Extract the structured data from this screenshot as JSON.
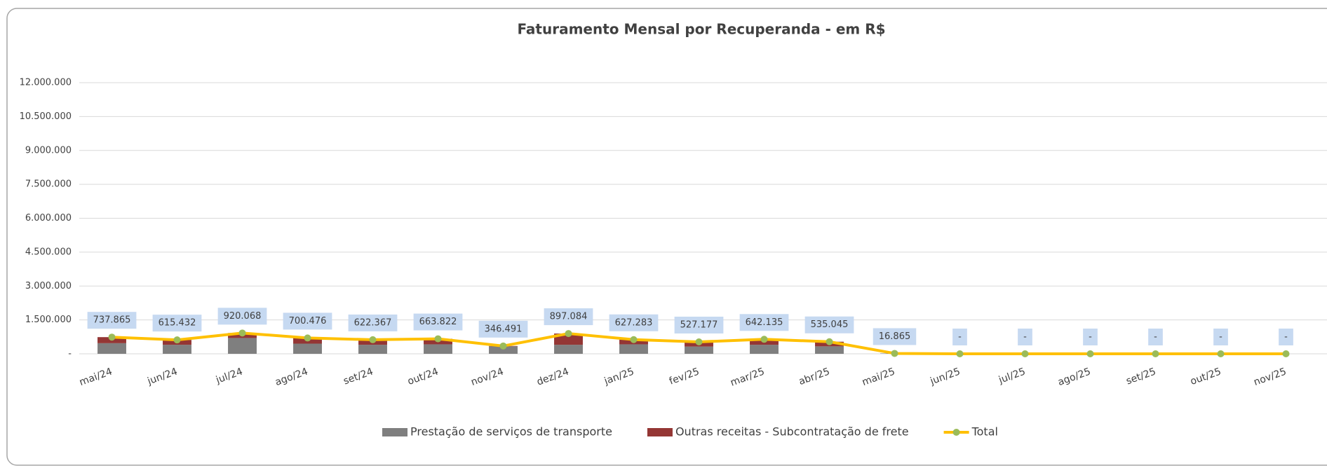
{
  "chart_data": {
    "type": "bar+line",
    "title": "Faturamento Mensal por Recuperanda - em R$",
    "categories": [
      "mai/24",
      "jun/24",
      "jul/24",
      "ago/24",
      "set/24",
      "out/24",
      "nov/24",
      "dez/24",
      "jan/25",
      "fev/25",
      "mar/25",
      "abr/25",
      "mai/25",
      "jun/25",
      "jul/25",
      "ago/25",
      "set/25",
      "out/25",
      "nov/25"
    ],
    "series": [
      {
        "name": "Prestação de serviços de transporte",
        "color": "#7f7f7f",
        "kind": "bar",
        "values": [
          470000,
          400000,
          700000,
          450000,
          400000,
          420000,
          330000,
          400000,
          420000,
          320000,
          400000,
          330000,
          16865,
          0,
          0,
          0,
          0,
          0,
          0
        ]
      },
      {
        "name": "Outras receitas - Subcontratação de frete",
        "color": "#943634",
        "kind": "bar",
        "values": [
          267865,
          215432,
          220068,
          250476,
          222367,
          243822,
          16491,
          497084,
          207283,
          207177,
          242135,
          205045,
          0,
          0,
          0,
          0,
          0,
          0,
          0
        ]
      },
      {
        "name": "Total",
        "color": "#ffc000",
        "marker_color": "#9bbb59",
        "kind": "line",
        "values": [
          737865,
          615432,
          920068,
          700476,
          622367,
          663822,
          346491,
          897084,
          627283,
          527177,
          642135,
          535045,
          16865,
          0,
          0,
          0,
          0,
          0,
          0
        ],
        "value_labels": [
          "737.865",
          "615.432",
          "920.068",
          "700.476",
          "622.367",
          "663.822",
          "346.491",
          "897.084",
          "627.283",
          "527.177",
          "642.135",
          "535.045",
          "16.865",
          "-",
          "-",
          "-",
          "-",
          "-",
          "-"
        ]
      }
    ],
    "ylim": [
      0,
      12000000
    ],
    "yticks": [
      {
        "value": 0,
        "label": "-"
      },
      {
        "value": 1500000,
        "label": "1.500.000"
      },
      {
        "value": 3000000,
        "label": "3.000.000"
      },
      {
        "value": 4500000,
        "label": "4.500.000"
      },
      {
        "value": 6000000,
        "label": "6.000.000"
      },
      {
        "value": 7500000,
        "label": "7.500.000"
      },
      {
        "value": 9000000,
        "label": "9.000.000"
      },
      {
        "value": 10500000,
        "label": "10.500.000"
      },
      {
        "value": 12000000,
        "label": "12.000.000"
      }
    ],
    "grid": true,
    "legend": "bottom"
  }
}
